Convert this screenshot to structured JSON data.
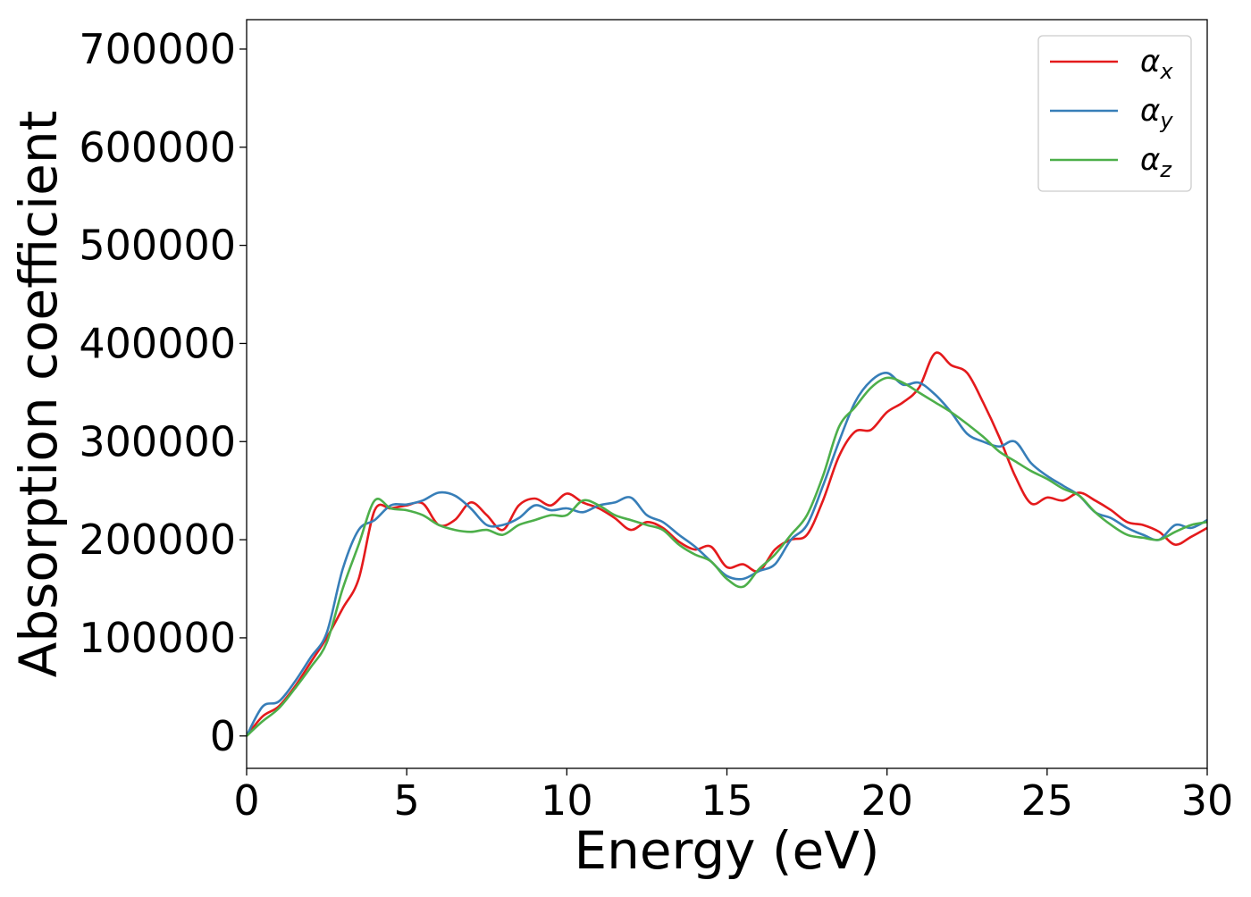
{
  "chart_data": {
    "type": "line",
    "title": "",
    "xlabel": "Energy (eV)",
    "ylabel": "Absorption coefficient",
    "xlim": [
      0,
      30
    ],
    "ylim": [
      -33000,
      730000
    ],
    "xticks": [
      "0",
      "5",
      "10",
      "15",
      "20",
      "25",
      "30"
    ],
    "yticks": [
      "0",
      "100000",
      "200000",
      "300000",
      "400000",
      "500000",
      "600000",
      "700000"
    ],
    "grid": false,
    "legend_position": "top-right",
    "x": [
      0,
      0.5,
      1.0,
      1.5,
      2.0,
      2.5,
      3.0,
      3.5,
      4.0,
      4.5,
      5.0,
      5.5,
      6.0,
      6.5,
      7.0,
      7.5,
      8.0,
      8.5,
      9.0,
      9.5,
      10.0,
      10.5,
      11.0,
      11.5,
      12.0,
      12.5,
      13.0,
      13.5,
      14.0,
      14.5,
      15.0,
      15.5,
      16.0,
      16.5,
      17.0,
      17.5,
      18.0,
      18.5,
      19.0,
      19.5,
      20.0,
      20.5,
      21.0,
      21.5,
      22.0,
      22.5,
      23.0,
      23.5,
      24.0,
      24.5,
      25.0,
      25.5,
      26.0,
      26.5,
      27.0,
      27.5,
      28.0,
      28.5,
      29.0,
      29.5,
      30.0
    ],
    "series": [
      {
        "name": "α",
        "subscript": "x",
        "color": "#e41a1c",
        "values": [
          0,
          20000,
          30000,
          50000,
          75000,
          100000,
          130000,
          160000,
          230000,
          232000,
          235000,
          237000,
          215000,
          220000,
          238000,
          225000,
          210000,
          235000,
          242000,
          235000,
          247000,
          238000,
          232000,
          222000,
          210000,
          218000,
          212000,
          198000,
          190000,
          193000,
          172000,
          175000,
          168000,
          190000,
          200000,
          205000,
          240000,
          285000,
          310000,
          312000,
          330000,
          340000,
          355000,
          390000,
          378000,
          370000,
          340000,
          305000,
          265000,
          237000,
          243000,
          240000,
          248000,
          240000,
          230000,
          218000,
          215000,
          208000,
          195000,
          203000,
          212000
        ]
      },
      {
        "name": "α",
        "subscript": "y",
        "color": "#377eb8",
        "values": [
          0,
          30000,
          35000,
          55000,
          80000,
          105000,
          170000,
          210000,
          220000,
          235000,
          236000,
          240000,
          248000,
          245000,
          232000,
          215000,
          215000,
          222000,
          235000,
          230000,
          232000,
          228000,
          235000,
          238000,
          243000,
          225000,
          218000,
          205000,
          193000,
          178000,
          163000,
          160000,
          168000,
          175000,
          200000,
          215000,
          255000,
          300000,
          340000,
          362000,
          370000,
          358000,
          360000,
          348000,
          330000,
          308000,
          300000,
          295000,
          300000,
          278000,
          265000,
          255000,
          245000,
          228000,
          222000,
          212000,
          205000,
          200000,
          215000,
          212000,
          220000
        ]
      },
      {
        "name": "α",
        "subscript": "z",
        "color": "#4daf4a",
        "values": [
          0,
          15000,
          28000,
          48000,
          70000,
          95000,
          150000,
          195000,
          240000,
          232000,
          230000,
          225000,
          215000,
          210000,
          208000,
          210000,
          205000,
          215000,
          220000,
          225000,
          225000,
          240000,
          235000,
          225000,
          220000,
          215000,
          210000,
          195000,
          185000,
          178000,
          160000,
          152000,
          170000,
          185000,
          205000,
          225000,
          265000,
          315000,
          335000,
          355000,
          365000,
          360000,
          350000,
          340000,
          330000,
          318000,
          305000,
          290000,
          280000,
          270000,
          262000,
          252000,
          245000,
          228000,
          215000,
          205000,
          202000,
          200000,
          208000,
          215000,
          218000
        ]
      }
    ]
  }
}
